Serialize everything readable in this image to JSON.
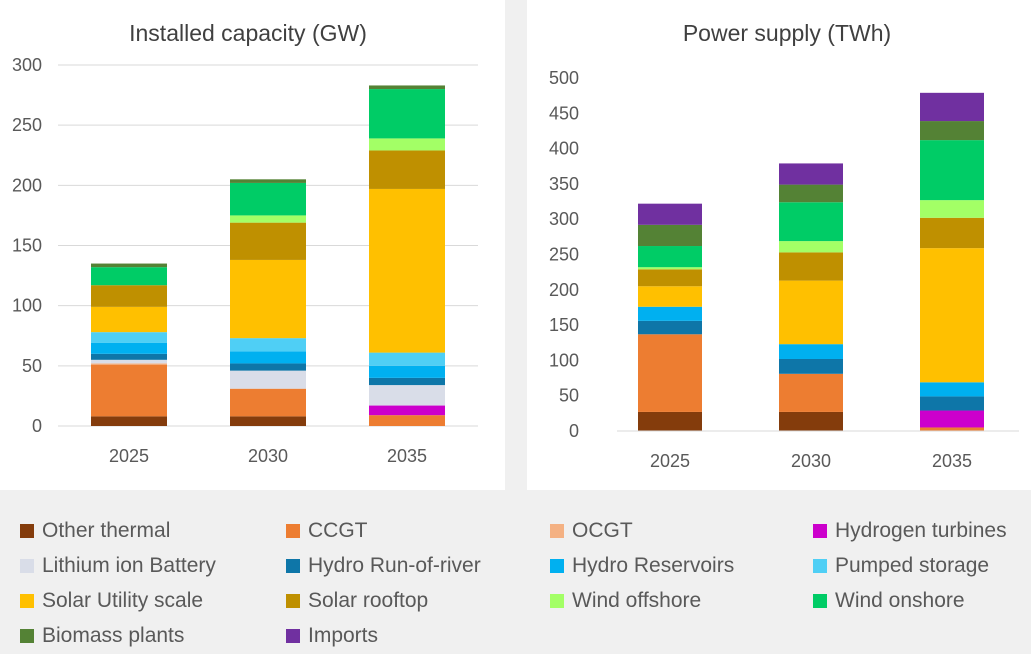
{
  "series": [
    {
      "name": "Other thermal",
      "color": "#843C0C"
    },
    {
      "name": "CCGT",
      "color": "#ED7D31"
    },
    {
      "name": "OCGT",
      "color": "#F4B183"
    },
    {
      "name": "Hydrogen turbines",
      "color": "#CC00CC"
    },
    {
      "name": "Lithium ion Battery",
      "color": "#D9DDE8"
    },
    {
      "name": "Hydro Run-of-river",
      "color": "#0E76A8"
    },
    {
      "name": "Hydro Reservoirs",
      "color": "#00B0F0"
    },
    {
      "name": "Pumped storage",
      "color": "#4FCFF5"
    },
    {
      "name": "Solar Utility scale",
      "color": "#FFC000"
    },
    {
      "name": "Solar rooftop",
      "color": "#BF9000"
    },
    {
      "name": "Wind offshore",
      "color": "#A3FF66"
    },
    {
      "name": "Wind onshore",
      "color": "#00CC66"
    },
    {
      "name": "Biomass plants",
      "color": "#548235"
    },
    {
      "name": "Imports",
      "color": "#7030A0"
    }
  ],
  "chart_data": [
    {
      "type": "bar",
      "stacked": true,
      "title": "Installed capacity (GW)",
      "categories": [
        "2025",
        "2030",
        "2035"
      ],
      "ylim": [
        0,
        300
      ],
      "yticks": [
        0,
        50,
        100,
        150,
        200,
        250,
        300
      ],
      "grid": true,
      "series": [
        {
          "name": "Other thermal",
          "values": [
            8,
            8,
            0
          ]
        },
        {
          "name": "CCGT",
          "values": [
            43,
            23,
            9
          ]
        },
        {
          "name": "OCGT",
          "values": [
            1,
            0,
            0
          ]
        },
        {
          "name": "Hydrogen turbines",
          "values": [
            0,
            0,
            8
          ]
        },
        {
          "name": "Lithium ion Battery",
          "values": [
            3,
            15,
            17
          ]
        },
        {
          "name": "Hydro Run-of-river",
          "values": [
            5,
            6,
            6
          ]
        },
        {
          "name": "Hydro Reservoirs",
          "values": [
            9,
            10,
            10
          ]
        },
        {
          "name": "Pumped storage",
          "values": [
            9,
            11,
            11
          ]
        },
        {
          "name": "Solar Utility scale",
          "values": [
            21,
            65,
            136
          ]
        },
        {
          "name": "Solar rooftop",
          "values": [
            18,
            31,
            32
          ]
        },
        {
          "name": "Wind offshore",
          "values": [
            0,
            6,
            10
          ]
        },
        {
          "name": "Wind onshore",
          "values": [
            15,
            27,
            41
          ]
        },
        {
          "name": "Biomass plants",
          "values": [
            3,
            3,
            3
          ]
        },
        {
          "name": "Imports",
          "values": [
            0,
            0,
            0
          ]
        }
      ]
    },
    {
      "type": "bar",
      "stacked": true,
      "title": "Power supply (TWh)",
      "categories": [
        "2025",
        "2030",
        "2035"
      ],
      "ylim": [
        0,
        500
      ],
      "yticks": [
        0,
        50,
        100,
        150,
        200,
        250,
        300,
        350,
        400,
        450,
        500
      ],
      "grid": false,
      "series": [
        {
          "name": "Other thermal",
          "values": [
            27,
            27,
            0
          ]
        },
        {
          "name": "CCGT",
          "values": [
            110,
            54,
            5
          ]
        },
        {
          "name": "OCGT",
          "values": [
            0,
            0,
            0
          ]
        },
        {
          "name": "Hydrogen turbines",
          "values": [
            0,
            0,
            24
          ]
        },
        {
          "name": "Lithium ion Battery",
          "values": [
            0,
            0,
            0
          ]
        },
        {
          "name": "Hydro Run-of-river",
          "values": [
            19,
            21,
            20
          ]
        },
        {
          "name": "Hydro Reservoirs",
          "values": [
            20,
            21,
            20
          ]
        },
        {
          "name": "Pumped storage",
          "values": [
            0,
            0,
            0
          ]
        },
        {
          "name": "Solar Utility scale",
          "values": [
            29,
            90,
            190
          ]
        },
        {
          "name": "Solar rooftop",
          "values": [
            24,
            40,
            43
          ]
        },
        {
          "name": "Wind offshore",
          "values": [
            3,
            16,
            25
          ]
        },
        {
          "name": "Wind onshore",
          "values": [
            30,
            55,
            85
          ]
        },
        {
          "name": "Biomass plants",
          "values": [
            30,
            25,
            27
          ]
        },
        {
          "name": "Imports",
          "values": [
            30,
            30,
            40
          ]
        }
      ]
    }
  ]
}
